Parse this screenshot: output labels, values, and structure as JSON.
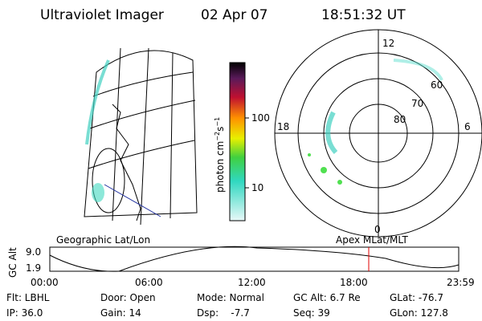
{
  "header": {
    "instrument": "Ultraviolet Imager",
    "date": "02 Apr 07",
    "time": "18:51:32 UT"
  },
  "colorbar": {
    "label_main": "photon cm",
    "label_exp1": "−2",
    "label_mid": "s",
    "label_exp2": "−1",
    "ticks": [
      "100",
      "10"
    ]
  },
  "polar": {
    "mlt_labels": [
      "12",
      "18",
      "6",
      "0"
    ],
    "lat_labels": [
      "60",
      "70",
      "80"
    ]
  },
  "panels": {
    "left": "Geographic Lat/Lon",
    "right": "Apex MLat/MLT"
  },
  "altitude_plot": {
    "ylabel": "GC Alt",
    "yticks": [
      "9.0",
      "1.9"
    ],
    "xticks": [
      "00:00",
      "06:00",
      "12:00",
      "18:00",
      "23:59"
    ]
  },
  "footer": {
    "rows": [
      [
        "Flt: LBHL",
        "Door: Open",
        "Mode: Normal",
        "GC Alt: 6.7 Re",
        "GLat: -76.7"
      ],
      [
        "IP: 36.0",
        "Gain: 14",
        "Dsp:    -7.7",
        "Seq: 39",
        "GLon: 127.8"
      ]
    ]
  }
}
